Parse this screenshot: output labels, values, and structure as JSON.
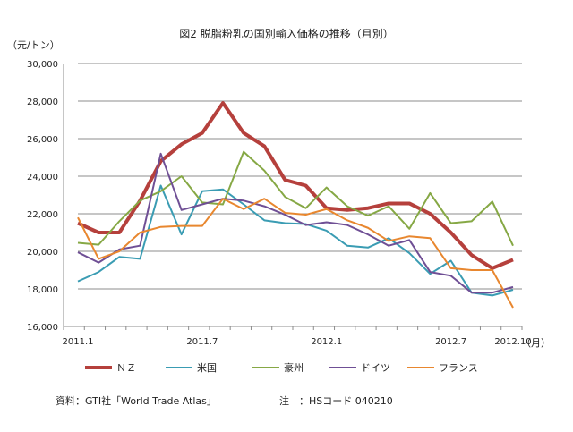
{
  "chart_data": {
    "type": "line",
    "title": "図2 脱脂粉乳の国別輸入価格の推移（月別）",
    "ylabel": "（元/トン）",
    "xlabel": "（月）",
    "ylim": [
      16000,
      30000
    ],
    "yticks": [
      "16,000",
      "18,000",
      "20,000",
      "22,000",
      "24,000",
      "26,000",
      "28,000",
      "30,000"
    ],
    "ytick_values": [
      16000,
      18000,
      20000,
      22000,
      24000,
      26000,
      28000,
      30000
    ],
    "x": [
      "2011.1",
      "2011.2",
      "2011.3",
      "2011.4",
      "2011.5",
      "2011.6",
      "2011.7",
      "2011.8",
      "2011.9",
      "2011.10",
      "2011.11",
      "2011.12",
      "2012.1",
      "2012.2",
      "2012.3",
      "2012.4",
      "2012.5",
      "2012.6",
      "2012.7",
      "2012.8",
      "2012.9",
      "2012.10"
    ],
    "xtick_labels": [
      {
        "index": 0,
        "label": "2011.1"
      },
      {
        "index": 6,
        "label": "2011.7"
      },
      {
        "index": 12,
        "label": "2012.1"
      },
      {
        "index": 18,
        "label": "2012.7"
      },
      {
        "index": 21,
        "label": "2012.10"
      }
    ],
    "grid": true,
    "legend_position": "bottom",
    "series": [
      {
        "name": "ＮＺ",
        "color": "#b5403c",
        "width": 4,
        "values": [
          21500,
          21000,
          21000,
          22700,
          24800,
          25700,
          26300,
          27900,
          26300,
          25600,
          23800,
          23500,
          22300,
          22200,
          22300,
          22550,
          22550,
          22000,
          21000,
          19800,
          19100,
          19550
        ]
      },
      {
        "name": "米国",
        "color": "#3a9cb3",
        "width": 2,
        "values": [
          18400,
          18900,
          19700,
          19600,
          23500,
          20900,
          23200,
          23300,
          22500,
          21650,
          21500,
          21450,
          21100,
          20300,
          20200,
          20700,
          19900,
          18800,
          19500,
          17800,
          17650,
          17950
        ]
      },
      {
        "name": "豪州",
        "color": "#86a845",
        "width": 2,
        "values": [
          20450,
          20350,
          21600,
          22700,
          23200,
          24000,
          22600,
          22500,
          25300,
          24300,
          22900,
          22300,
          23400,
          22400,
          21900,
          22400,
          21200,
          23100,
          21500,
          21600,
          22650,
          20300
        ]
      },
      {
        "name": "ドイツ",
        "color": "#6f4f95",
        "width": 2,
        "values": [
          19950,
          19400,
          20100,
          20300,
          25200,
          22200,
          22500,
          22800,
          22700,
          22400,
          21950,
          21400,
          21550,
          21400,
          20900,
          20300,
          20600,
          18900,
          18700,
          17800,
          17800,
          18100
        ]
      },
      {
        "name": "フランス",
        "color": "#e8872f",
        "width": 2,
        "values": [
          21800,
          19600,
          20000,
          21000,
          21300,
          21350,
          21350,
          22800,
          22250,
          22800,
          22050,
          21950,
          22250,
          21650,
          21250,
          20550,
          20800,
          20700,
          19100,
          19000,
          19000,
          17000
        ]
      }
    ]
  },
  "footer": {
    "source": "資料：GTI社「World Trade Atlas」",
    "note": "注　：HSコード 040210"
  }
}
